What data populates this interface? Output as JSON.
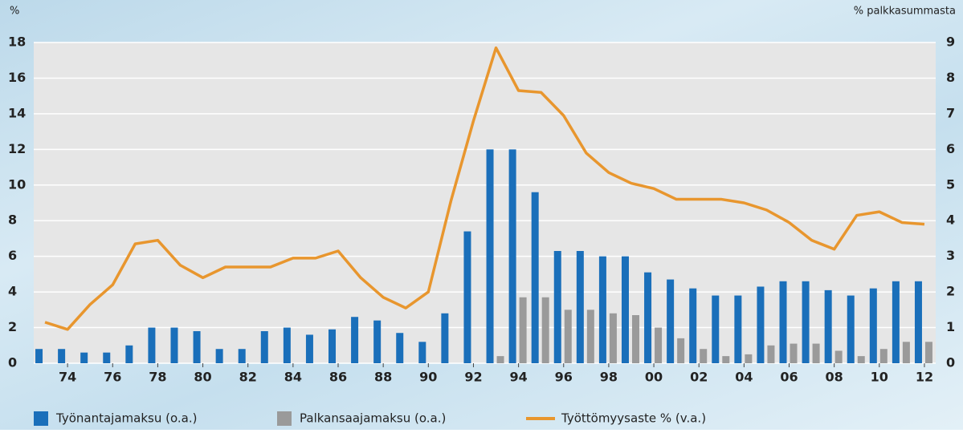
{
  "chart_data": {
    "type": "bar-line",
    "y_label": "%",
    "y2_label": "% palkkasummasta",
    "categories": [
      null,
      "74",
      null,
      "76",
      null,
      "78",
      null,
      "80",
      null,
      "82",
      null,
      "84",
      null,
      "86",
      null,
      "88",
      null,
      "90",
      null,
      "92",
      null,
      "94",
      null,
      "96",
      null,
      "98",
      null,
      "00",
      null,
      "02",
      null,
      "04",
      null,
      "06",
      null,
      "08",
      null,
      "10",
      null,
      "12"
    ],
    "ylim": [
      0,
      18
    ],
    "yticks": [
      0,
      2,
      4,
      6,
      8,
      10,
      12,
      14,
      16,
      18
    ],
    "y2lim": [
      0,
      9
    ],
    "y2ticks": [
      0,
      1,
      2,
      3,
      4,
      5,
      6,
      7,
      8,
      9
    ],
    "grid": true,
    "series": [
      {
        "name": "Työnantajamaksu (o.a.)",
        "type": "bar",
        "axis": "y2",
        "color": "#1a6fba",
        "values": [
          0.4,
          0.4,
          0.3,
          0.3,
          0.5,
          1.0,
          1.0,
          0.9,
          0.4,
          0.4,
          0.9,
          1.0,
          0.8,
          0.95,
          1.3,
          1.2,
          0.85,
          0.6,
          1.4,
          3.7,
          6.0,
          6.0,
          4.8,
          3.15,
          3.15,
          3.0,
          3.0,
          2.55,
          2.35,
          2.1,
          1.9,
          1.9,
          2.15,
          2.3,
          2.3,
          2.05,
          1.9,
          2.1,
          2.3,
          2.3
        ]
      },
      {
        "name": "Palkansaajamaksu (o.a.)",
        "type": "bar",
        "axis": "y2",
        "color": "#9a9a9a",
        "values": [
          0,
          0,
          0,
          0,
          0,
          0,
          0,
          0,
          0,
          0,
          0,
          0,
          0,
          0,
          0,
          0,
          0,
          0,
          0,
          0,
          0.2,
          1.85,
          1.85,
          1.5,
          1.5,
          1.4,
          1.35,
          1.0,
          0.7,
          0.4,
          0.2,
          0.25,
          0.5,
          0.55,
          0.55,
          0.35,
          0.2,
          0.4,
          0.6,
          0.6
        ]
      },
      {
        "name": "Työttömyysaste % (v.a.)",
        "type": "line",
        "color": "#e8962e",
        "values": [
          2.3,
          1.9,
          3.3,
          4.4,
          6.7,
          6.9,
          5.5,
          4.8,
          5.4,
          5.4,
          5.4,
          5.9,
          5.9,
          6.3,
          4.8,
          3.7,
          3.1,
          4.0,
          9.1,
          13.6,
          17.7,
          15.3,
          15.2,
          13.9,
          11.8,
          10.7,
          10.1,
          9.8,
          9.2,
          9.2,
          9.2,
          9.0,
          8.6,
          7.9,
          6.9,
          6.4,
          8.3,
          8.5,
          7.9,
          7.8
        ]
      }
    ]
  }
}
